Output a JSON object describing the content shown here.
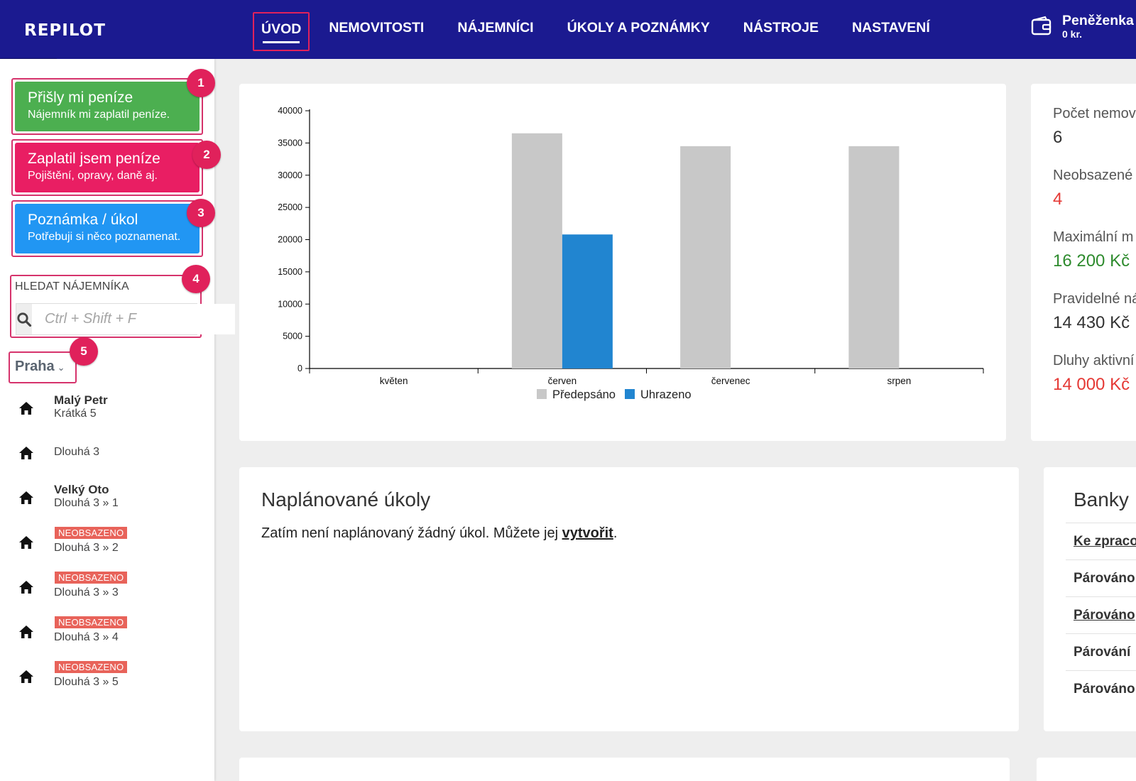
{
  "app": {
    "logo": "REPILOT",
    "nav": [
      {
        "label": "ÚVOD",
        "active": true
      },
      {
        "label": "NEMOVITOSTI"
      },
      {
        "label": "NÁJEMNÍCI"
      },
      {
        "label": "ÚKOLY A POZNÁMKY"
      },
      {
        "label": "NÁSTROJE"
      },
      {
        "label": "NASTAVENÍ"
      }
    ],
    "wallet": {
      "title": "Peněženka",
      "amount": "0 kr."
    }
  },
  "sidebar": {
    "actions": [
      {
        "title": "Přišly mi peníze",
        "subtitle": "Nájemník mi zaplatil peníze.",
        "color": "#4caf50",
        "badge": "1"
      },
      {
        "title": "Zaplatil jsem peníze",
        "subtitle": "Pojištění, opravy, daně aj.",
        "color": "#e91e63",
        "badge": "2"
      },
      {
        "title": "Poznámka / úkol",
        "subtitle": "Potřebuji si něco poznamenat.",
        "color": "#2196f3",
        "badge": "3"
      }
    ],
    "search": {
      "label": "HLEDAT NÁJEMNÍKA",
      "placeholder": "Ctrl + Shift + F",
      "badge": "4"
    },
    "city": {
      "label": "Praha",
      "badge": "5"
    },
    "properties": [
      {
        "name": "Malý Petr",
        "address": "Krátká 5"
      },
      {
        "address": "Dlouhá 3"
      },
      {
        "name": "Velký Oto",
        "address": "Dlouhá 3 » 1"
      },
      {
        "tag": "NEOBSAZENO",
        "address": "Dlouhá 3 » 2"
      },
      {
        "tag": "NEOBSAZENO",
        "address": "Dlouhá 3 » 3"
      },
      {
        "tag": "NEOBSAZENO",
        "address": "Dlouhá 3 » 4"
      },
      {
        "tag": "NEOBSAZENO",
        "address": "Dlouhá 3 » 5"
      }
    ]
  },
  "chart_data": {
    "type": "bar",
    "categories": [
      "květen",
      "červen",
      "červenec",
      "srpen"
    ],
    "series": [
      {
        "name": "Předepsáno",
        "values": [
          0,
          36500,
          34500,
          34500
        ],
        "color": "#c8c8c8"
      },
      {
        "name": "Uhrazeno",
        "values": [
          0,
          20800,
          0,
          0
        ],
        "color": "#2185d0"
      }
    ],
    "ylim": [
      0,
      40000
    ],
    "yticks": [
      "0",
      "5000",
      "10000",
      "15000",
      "20000",
      "25000",
      "30000",
      "35000",
      "40000"
    ],
    "legend": "bottom",
    "grid": false,
    "title": "",
    "xlabel": "",
    "ylabel": ""
  },
  "stats": [
    {
      "label": "Počet nemov",
      "value": "6",
      "color": "#333333"
    },
    {
      "label": "Neobsazené",
      "value": "4",
      "color": "#e53935"
    },
    {
      "label": "Maximální m",
      "value": "16 200 Kč",
      "color": "#2e8b2e"
    },
    {
      "label": "Pravidelné ná",
      "value": "14 430 Kč",
      "color": "#333333"
    },
    {
      "label": "Dluhy aktivní",
      "value": "14 000 Kč",
      "color": "#e53935"
    }
  ],
  "tasks": {
    "title": "Naplánované úkoly",
    "text": "Zatím není naplánovaný žádný úkol. Můžete jej ",
    "link": "vytvořit",
    "end": "."
  },
  "banks": {
    "title": "Banky",
    "rows": [
      {
        "label": "Ke zpraco",
        "underline": true
      },
      {
        "label": "Párováno",
        "underline": false
      },
      {
        "label": "Párováno",
        "underline": true
      },
      {
        "label": "Párování",
        "underline": false
      },
      {
        "label": "Párováno",
        "underline": false
      }
    ]
  }
}
